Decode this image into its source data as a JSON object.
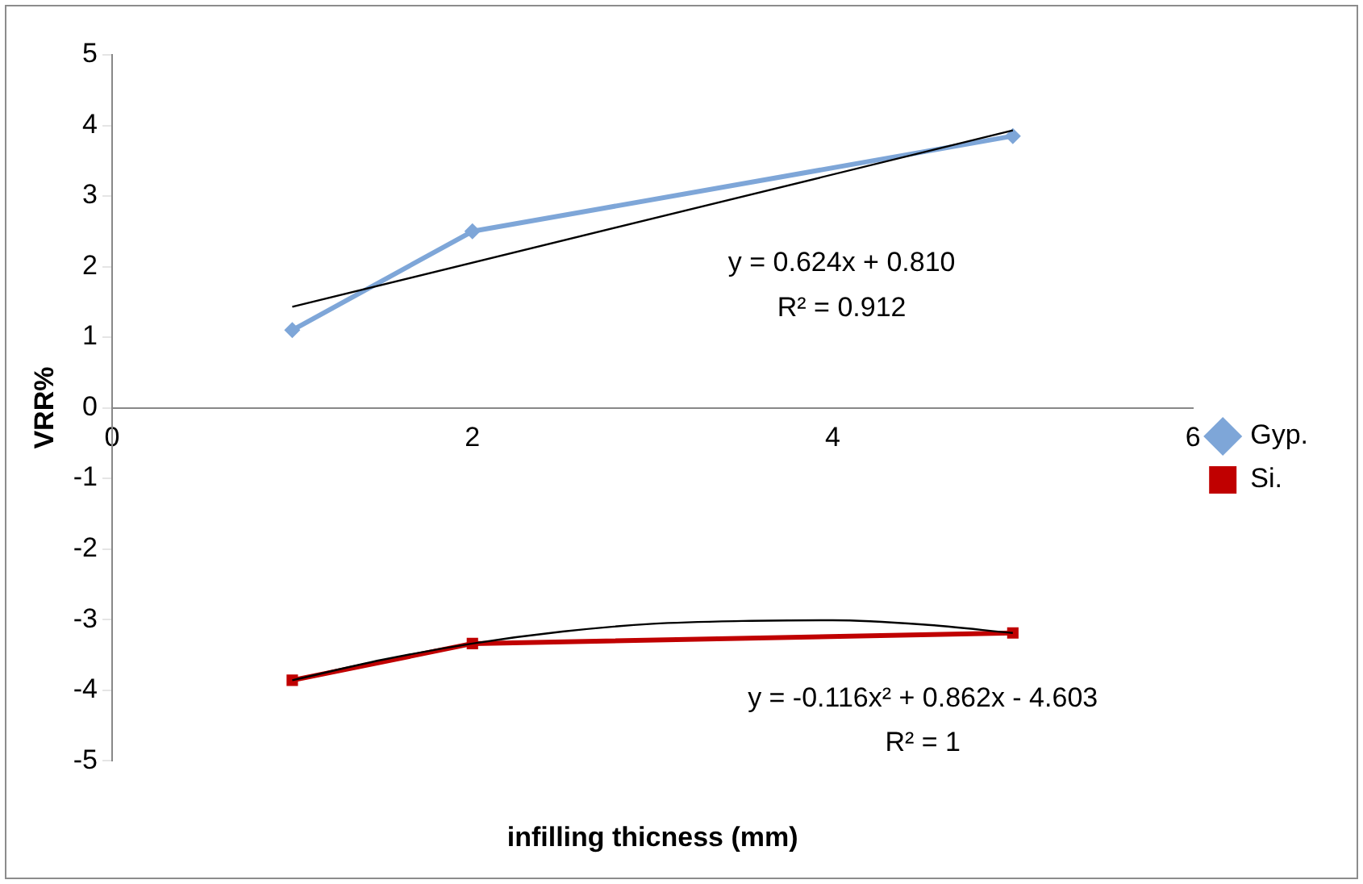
{
  "chart_data": {
    "type": "line",
    "xlabel": "infilling thicness (mm)",
    "ylabel": "VRR%",
    "xlim": [
      0,
      6
    ],
    "xticks": [
      0,
      2,
      4,
      6
    ],
    "ylim": [
      -5,
      5
    ],
    "yticks": [
      -5,
      -4,
      -3,
      -2,
      -1,
      0,
      1,
      2,
      3,
      4,
      5
    ],
    "grid": false,
    "legend": "right",
    "line_style": "solid",
    "series": [
      {
        "name": "Gyp.",
        "color": "#7ea6d8",
        "marker": "diamond",
        "x": [
          1,
          2,
          5
        ],
        "values": [
          1.1,
          2.5,
          3.85
        ]
      },
      {
        "name": "Si.",
        "color": "#c00000",
        "marker": "square",
        "x": [
          1,
          2,
          5
        ],
        "values": [
          -3.86,
          -3.34,
          -3.19
        ]
      },
      {
        "type": "line",
        "color": "#000000",
        "marker": "none",
        "x": [
          1,
          5
        ],
        "values": [
          1.43,
          3.93
        ]
      },
      {
        "type": "line",
        "color": "#000000",
        "marker": "none",
        "x": [
          1,
          1.5,
          2,
          2.5,
          3,
          3.5,
          4,
          4.5,
          5
        ],
        "values": [
          -3.86,
          -3.57,
          -3.34,
          -3.17,
          -3.06,
          -3.02,
          -3.01,
          -3.07,
          -3.19
        ]
      }
    ],
    "annotations": [
      "y = 0.624x + 0.810",
      "R² = 0.912",
      "y = -0.116x² + 0.862x - 4.603",
      "R² = 1"
    ]
  }
}
